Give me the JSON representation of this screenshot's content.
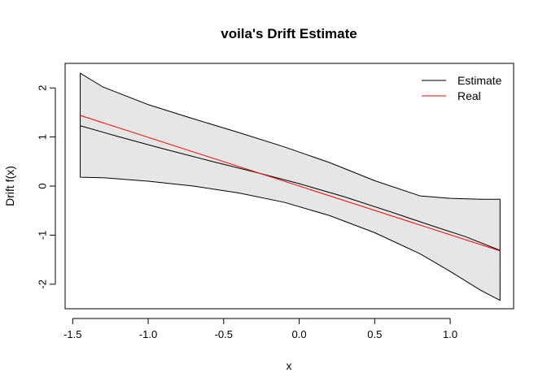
{
  "chart_data": {
    "type": "line",
    "title": "voila's Drift Estimate",
    "xlabel": "x",
    "ylabel": "Drift f(x)",
    "xlim": [
      -1.55,
      1.42
    ],
    "ylim": [
      -2.5,
      2.5
    ],
    "xticks": [
      -1.5,
      -1.0,
      -0.5,
      0.0,
      0.5,
      1.0
    ],
    "xtick_labels": [
      "-1.5",
      "-1.0",
      "-0.5",
      "0.0",
      "0.5",
      "1.0"
    ],
    "yticks": [
      -2,
      -1,
      0,
      1,
      2
    ],
    "ytick_labels": [
      "-2",
      "-1",
      "0",
      "1",
      "2"
    ],
    "grid": false,
    "legend": {
      "position": "top-right",
      "entries": [
        "Estimate",
        "Real"
      ]
    },
    "band": {
      "x": [
        -1.45,
        -1.3,
        -1.0,
        -0.7,
        -0.4,
        -0.1,
        0.2,
        0.5,
        0.8,
        1.0,
        1.2,
        1.33
      ],
      "upper": [
        2.3,
        2.02,
        1.66,
        1.37,
        1.09,
        0.8,
        0.48,
        0.11,
        -0.2,
        -0.25,
        -0.27,
        -0.27
      ],
      "lower": [
        0.18,
        0.17,
        0.1,
        0.0,
        -0.14,
        -0.33,
        -0.6,
        -0.95,
        -1.38,
        -1.74,
        -2.12,
        -2.33
      ]
    },
    "series": [
      {
        "name": "Estimate",
        "color": "#000000",
        "x": [
          -1.45,
          -1.2,
          -0.9,
          -0.6,
          -0.3,
          0.0,
          0.3,
          0.6,
          0.9,
          1.1,
          1.33
        ],
        "y": [
          1.23,
          1.01,
          0.76,
          0.52,
          0.29,
          0.05,
          -0.22,
          -0.52,
          -0.83,
          -1.03,
          -1.31
        ]
      },
      {
        "name": "Real",
        "color": "#ff0000",
        "x": [
          -1.45,
          1.33
        ],
        "y": [
          1.44,
          -1.32
        ]
      }
    ],
    "band_color": "#e6e6e6"
  }
}
